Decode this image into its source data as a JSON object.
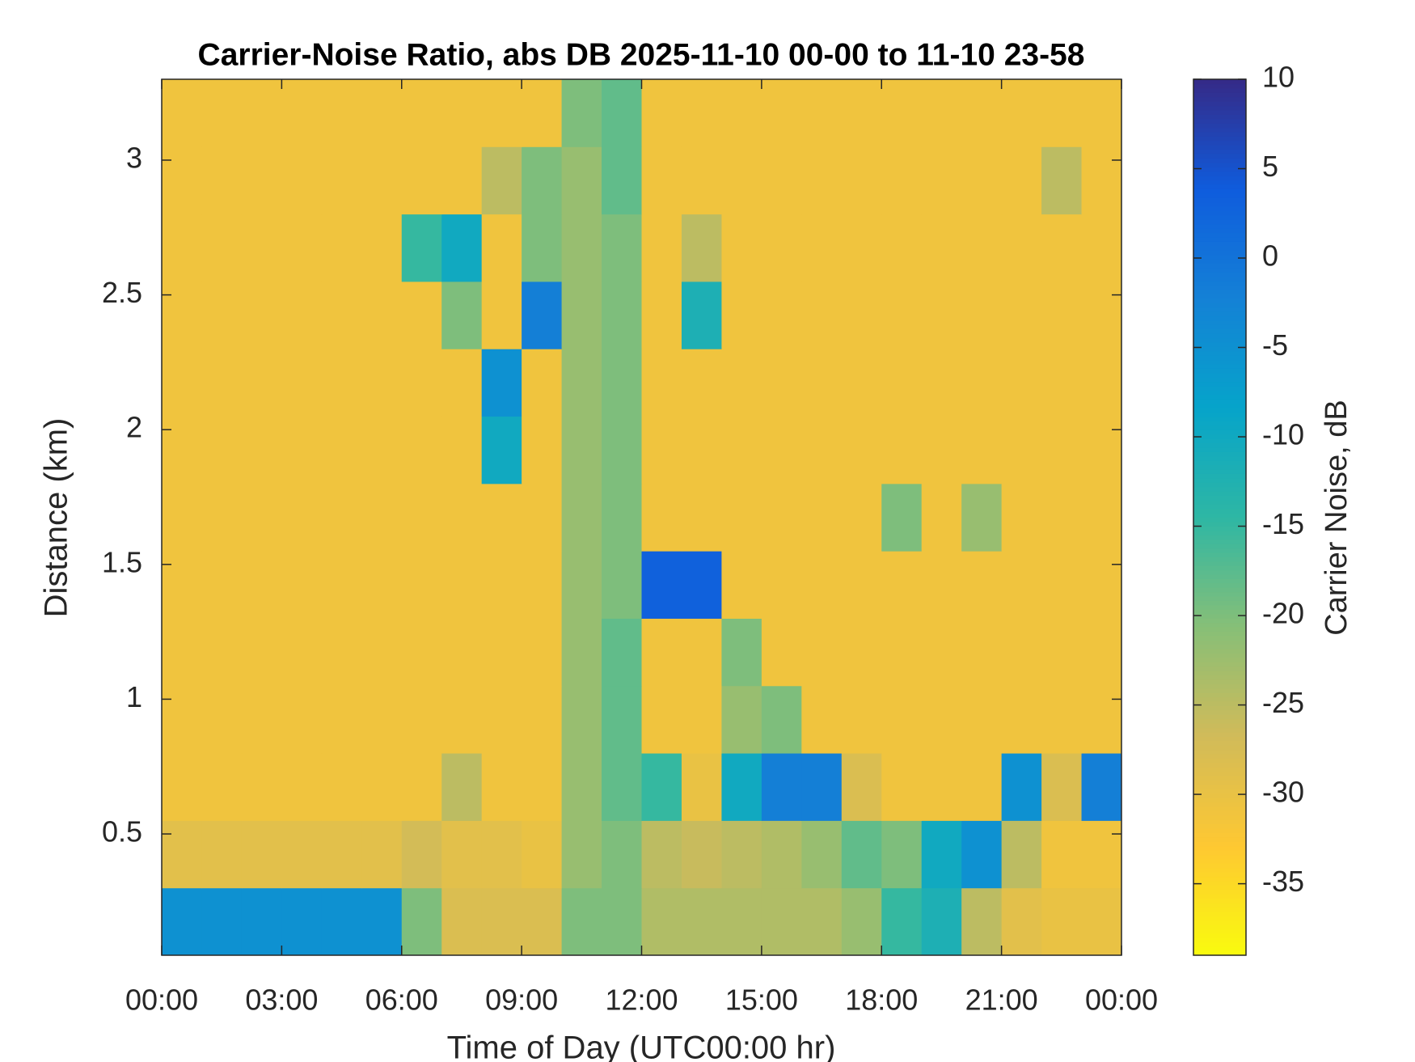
{
  "chart_data": {
    "type": "heatmap",
    "title": "Carrier-Noise Ratio, abs DB 2025-11-10 00-00 to 11-10 23-58",
    "x_label": "Time of Day (UTC00:00 hr)",
    "y_label": "Distance (km)",
    "colorbar_label": "Carrier Noise, dB",
    "colormap": [
      "#352a87",
      "#0f5cdd",
      "#1481d6",
      "#06a4ca",
      "#2eb7a4",
      "#87bf77",
      "#d1bb59",
      "#fec832",
      "#f9fb0e"
    ],
    "x_bins": [
      0,
      1,
      2,
      3,
      4,
      5,
      6,
      7,
      8,
      9,
      10,
      11,
      12,
      13,
      14,
      15,
      16,
      17,
      18,
      19,
      20,
      21,
      22,
      23,
      24
    ],
    "y_bins": [
      0.05,
      0.3,
      0.55,
      0.8,
      1.05,
      1.3,
      1.55,
      1.8,
      2.05,
      2.3,
      2.55,
      2.8,
      3.05,
      3.3
    ],
    "z": [
      [
        -5,
        -5,
        -5,
        -5,
        -5,
        -5,
        -20,
        -28,
        -28,
        -28,
        -20,
        -20,
        -24,
        -24,
        -24,
        -24,
        -24,
        -22,
        -15,
        -12,
        -25,
        -29,
        -30,
        -30
      ],
      [
        -29,
        -29,
        -29,
        -29,
        -29,
        -29,
        -27,
        -29,
        -29,
        -30,
        -22,
        -20,
        -25,
        -26,
        -25,
        -24,
        -22,
        -18,
        -20,
        -10,
        -5,
        -25,
        -31,
        -31
      ],
      [
        -31,
        -31,
        -31,
        -31,
        -31,
        -31,
        -31,
        -25,
        -31,
        -31,
        -22,
        -18,
        -15,
        -30,
        -10,
        -2,
        -2,
        -28,
        -31,
        -31,
        -31,
        -5,
        -28,
        -2
      ],
      [
        -31,
        -31,
        -31,
        -31,
        -31,
        -31,
        -31,
        -31,
        -31,
        -31,
        -22,
        -18,
        -31,
        -31,
        -22,
        -20,
        -31,
        -31,
        -31,
        -31,
        -31,
        -31,
        -31,
        -31
      ],
      [
        -31,
        -31,
        -31,
        -31,
        -31,
        -31,
        -31,
        -31,
        -31,
        -31,
        -22,
        -18,
        -31,
        -31,
        -20,
        -31,
        -31,
        -31,
        -31,
        -31,
        -31,
        -31,
        -31,
        -31
      ],
      [
        -31,
        -31,
        -31,
        -31,
        -31,
        -31,
        -31,
        -31,
        -31,
        -31,
        -22,
        -20,
        3,
        3,
        -31,
        -31,
        -31,
        -31,
        -31,
        -31,
        -31,
        -31,
        -31,
        -31
      ],
      [
        -31,
        -31,
        -31,
        -31,
        -31,
        -31,
        -31,
        -31,
        -31,
        -31,
        -22,
        -20,
        -31,
        -31,
        -31,
        -31,
        -31,
        -31,
        -20,
        -31,
        -22,
        -31,
        -31,
        -31
      ],
      [
        -31,
        -31,
        -31,
        -31,
        -31,
        -31,
        -31,
        -31,
        -10,
        -31,
        -22,
        -20,
        -31,
        -31,
        -31,
        -31,
        -31,
        -31,
        -31,
        -31,
        -31,
        -31,
        -31,
        -31
      ],
      [
        -31,
        -31,
        -31,
        -31,
        -31,
        -31,
        -31,
        -31,
        -5,
        -31,
        -22,
        -20,
        -31,
        -31,
        -31,
        -31,
        -31,
        -31,
        -31,
        -31,
        -31,
        -31,
        -31,
        -31
      ],
      [
        -31,
        -31,
        -31,
        -31,
        -31,
        -31,
        -31,
        -20,
        -31,
        -2,
        -22,
        -20,
        -31,
        -12,
        -31,
        -31,
        -31,
        -31,
        -31,
        -31,
        -31,
        -31,
        -31,
        -31
      ],
      [
        -31,
        -31,
        -31,
        -31,
        -31,
        -31,
        -15,
        -10,
        -31,
        -20,
        -22,
        -20,
        -31,
        -25,
        -31,
        -31,
        -31,
        -31,
        -31,
        -31,
        -31,
        -31,
        -31,
        -31
      ],
      [
        -31,
        -31,
        -31,
        -31,
        -31,
        -31,
        -31,
        -31,
        -25,
        -20,
        -22,
        -18,
        -31,
        -31,
        -31,
        -31,
        -31,
        -31,
        -31,
        -31,
        -31,
        -31,
        -25,
        -31
      ],
      [
        -31,
        -31,
        -31,
        -31,
        -31,
        -31,
        -31,
        -31,
        -31,
        -31,
        -20,
        -18,
        -31,
        -31,
        -31,
        -31,
        -31,
        -31,
        -31,
        -31,
        -31,
        -31,
        -31,
        -31
      ]
    ],
    "xlim": [
      0,
      24
    ],
    "xticks": [
      {
        "value": 0,
        "label": "00:00"
      },
      {
        "value": 3,
        "label": "03:00"
      },
      {
        "value": 6,
        "label": "06:00"
      },
      {
        "value": 9,
        "label": "09:00"
      },
      {
        "value": 12,
        "label": "12:00"
      },
      {
        "value": 15,
        "label": "15:00"
      },
      {
        "value": 18,
        "label": "18:00"
      },
      {
        "value": 21,
        "label": "21:00"
      },
      {
        "value": 24,
        "label": "00:00"
      }
    ],
    "ylim": [
      0.05,
      3.3
    ],
    "yticks": [
      0.5,
      1,
      1.5,
      2,
      2.5,
      3
    ],
    "clim": [
      -39,
      10
    ],
    "cticks": [
      -35,
      -30,
      -25,
      -20,
      -15,
      -10,
      -5,
      0,
      5,
      10
    ]
  }
}
